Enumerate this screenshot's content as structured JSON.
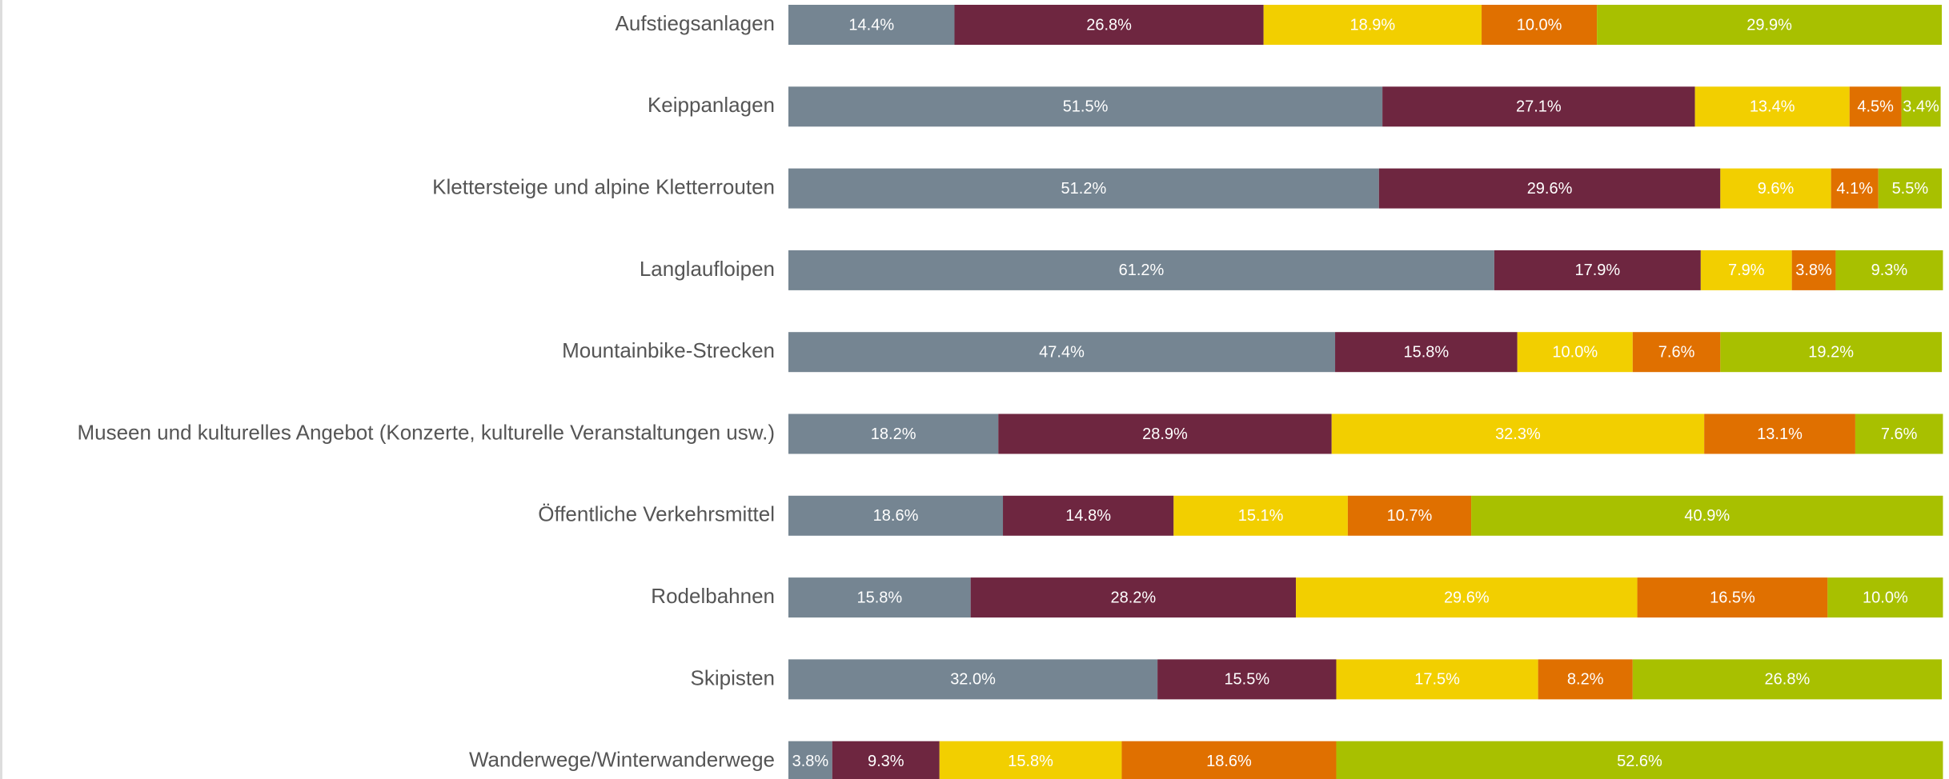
{
  "chart_data": {
    "type": "bar",
    "orientation": "horizontal",
    "stacked": true,
    "categories": [
      "Aufstiegsanlagen",
      "Keippanlagen",
      "Klettersteige und alpine Kletterrouten",
      "Langlaufloipen",
      "Mountainbike-Strecken",
      "Museen und kulturelles Angebot (Konzerte, kulturelle Veranstaltungen usw.)",
      "Öffentliche Verkehrsmittel",
      "Rodelbahnen",
      "Skipisten",
      "Wanderwege/Winterwanderwege"
    ],
    "xlim": [
      0,
      100
    ],
    "series": [
      {
        "color": "#758592",
        "values": [
          14.4,
          51.5,
          51.2,
          61.2,
          47.4,
          18.2,
          18.6,
          15.8,
          32.0,
          3.8
        ],
        "value_labels": [
          "14.4%",
          "51.5%",
          "51.2%",
          "61.2%",
          "47.4%",
          "18.2%",
          "18.6%",
          "15.8%",
          "32.0%",
          "3.8%"
        ]
      },
      {
        "color": "#6e2640",
        "values": [
          26.8,
          27.1,
          29.6,
          17.9,
          15.8,
          28.9,
          14.8,
          28.2,
          15.5,
          9.3
        ],
        "value_labels": [
          "26.8%",
          "27.1%",
          "29.6%",
          "17.9%",
          "15.8%",
          "28.9%",
          "14.8%",
          "28.2%",
          "15.5%",
          "9.3%"
        ]
      },
      {
        "color": "#f2cf00",
        "values": [
          18.9,
          13.4,
          9.6,
          7.9,
          10.0,
          32.3,
          15.1,
          29.6,
          17.5,
          15.8
        ],
        "value_labels": [
          "18.9%",
          "13.4%",
          "9.6%",
          "7.9%",
          "10.0%",
          "32.3%",
          "15.1%",
          "29.6%",
          "17.5%",
          "15.8%"
        ]
      },
      {
        "color": "#e07000",
        "values": [
          10.0,
          4.5,
          4.1,
          3.8,
          7.6,
          13.1,
          10.7,
          16.5,
          8.2,
          18.6
        ],
        "value_labels": [
          "10.0%",
          "4.5%",
          "4.1%",
          "3.8%",
          "7.6%",
          "13.1%",
          "10.7%",
          "16.5%",
          "8.2%",
          "18.6%"
        ]
      },
      {
        "color": "#a8c000",
        "values": [
          29.9,
          3.4,
          5.5,
          9.3,
          19.2,
          7.6,
          40.9,
          10.0,
          26.8,
          52.6
        ],
        "value_labels": [
          "29.9%",
          "3.4%",
          "5.5%",
          "9.3%",
          "19.2%",
          "7.6%",
          "40.9%",
          "10.0%",
          "26.8%",
          "52.6%"
        ]
      }
    ]
  }
}
